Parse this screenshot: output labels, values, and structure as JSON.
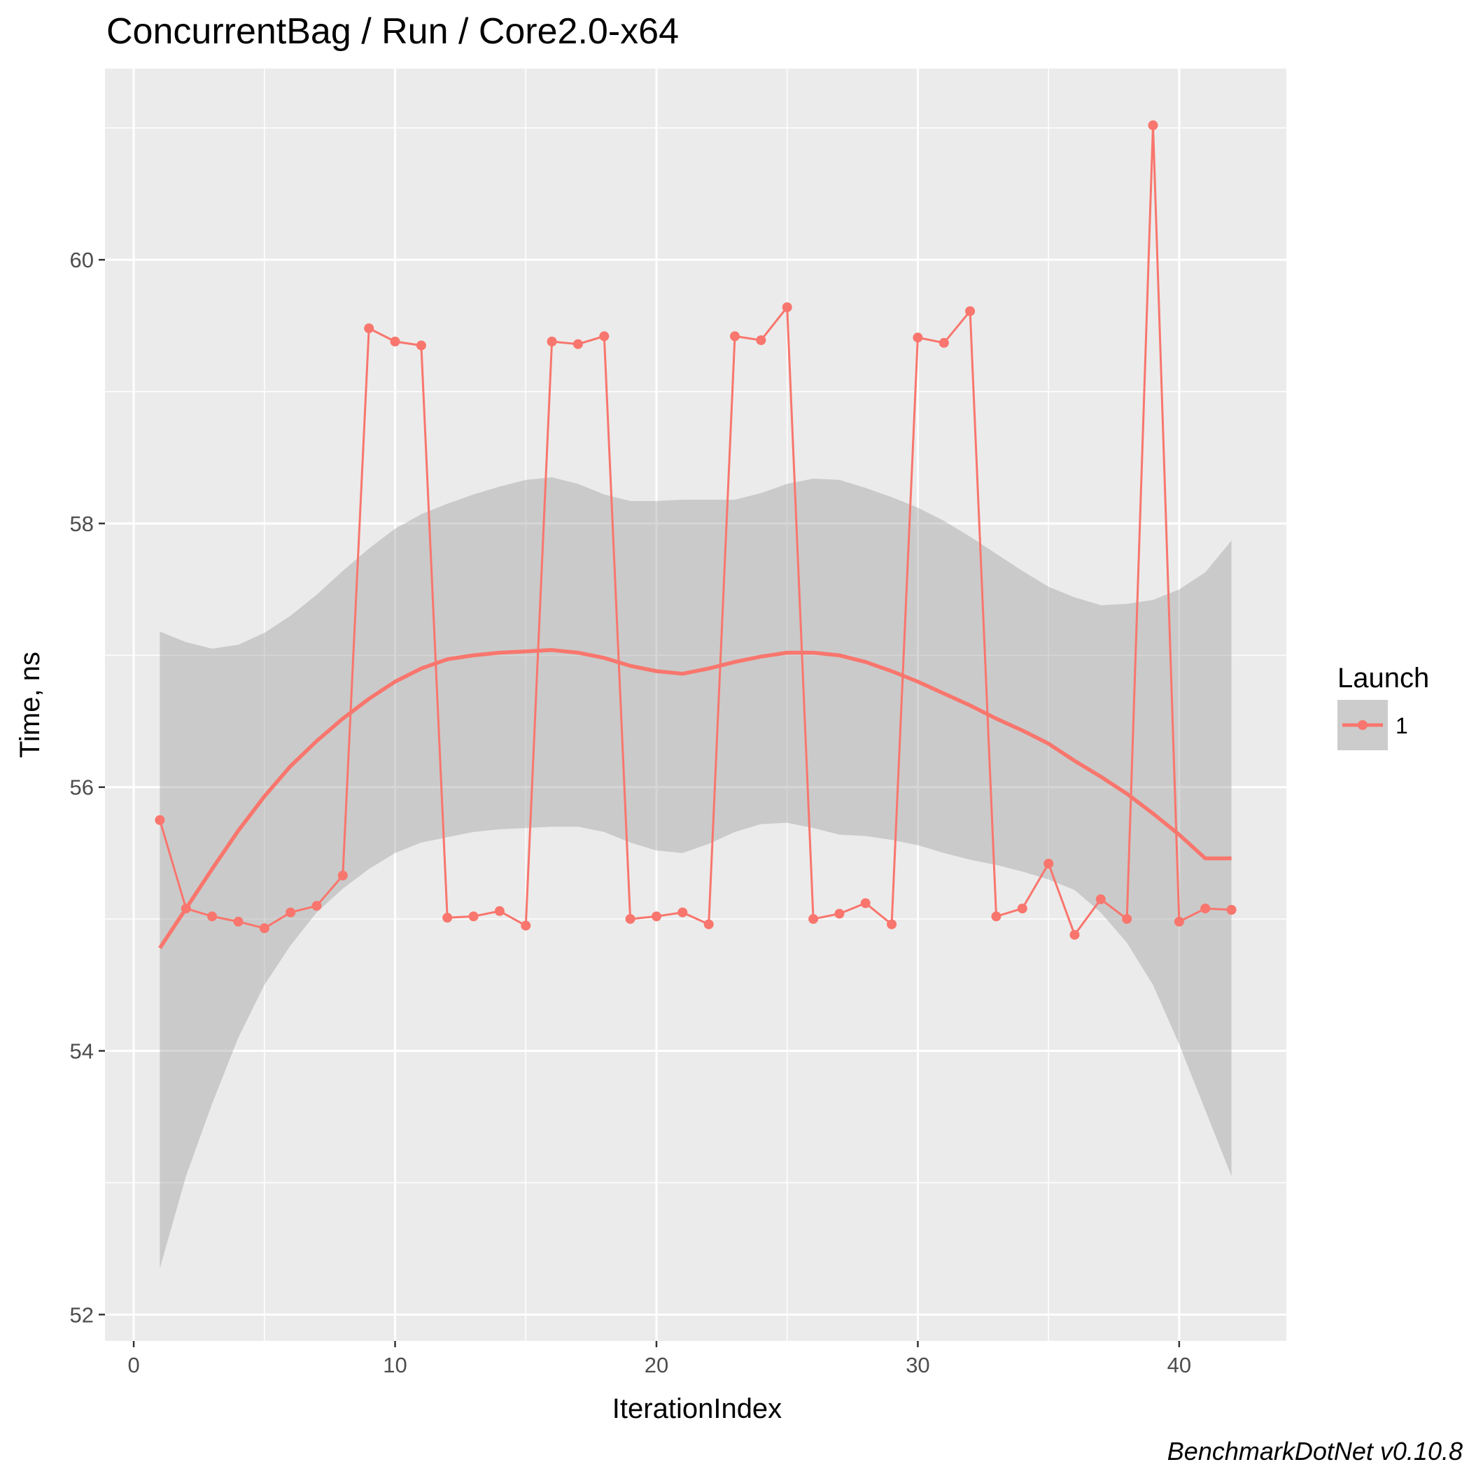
{
  "chart_data": {
    "type": "line",
    "title": "ConcurrentBag / Run / Core2.0-x64",
    "xlabel": "IterationIndex",
    "ylabel": "Time, ns",
    "caption": "BenchmarkDotNet v0.10.8",
    "xlim": [
      -1.1,
      44.1
    ],
    "ylim": [
      51.8,
      61.45
    ],
    "x_ticks": [
      0,
      10,
      20,
      30,
      40
    ],
    "x_tick_labels": [
      "0",
      "10",
      "20",
      "30",
      "40"
    ],
    "y_ticks": [
      52,
      54,
      56,
      58,
      60
    ],
    "y_tick_labels": [
      "52",
      "54",
      "56",
      "58",
      "60"
    ],
    "grid": true,
    "legend": {
      "title": "Launch",
      "position": "right",
      "entries": [
        "1"
      ]
    },
    "colors": {
      "series": "#f8766d",
      "band": "#cccccc",
      "panel": "#ebebeb",
      "grid": "#ffffff"
    },
    "series": [
      {
        "name": "1",
        "x": [
          1,
          2,
          3,
          4,
          5,
          6,
          7,
          8,
          9,
          10,
          11,
          12,
          13,
          14,
          15,
          16,
          17,
          18,
          19,
          20,
          21,
          22,
          23,
          24,
          25,
          26,
          27,
          28,
          29,
          30,
          31,
          32,
          33,
          34,
          35,
          36,
          37,
          38,
          39,
          40,
          41,
          42
        ],
        "values": [
          55.75,
          55.08,
          55.02,
          54.98,
          54.93,
          55.05,
          55.1,
          55.33,
          59.48,
          59.38,
          59.35,
          55.01,
          55.02,
          55.06,
          54.95,
          59.38,
          59.36,
          59.42,
          55.0,
          55.02,
          55.05,
          54.96,
          59.42,
          59.39,
          59.64,
          55.0,
          55.04,
          55.12,
          54.96,
          59.41,
          59.37,
          59.61,
          55.02,
          55.08,
          55.42,
          54.88,
          55.15,
          55.0,
          61.02,
          54.98,
          55.08,
          55.07
        ]
      }
    ],
    "smooth": {
      "x": [
        1,
        2,
        3,
        4,
        5,
        6,
        7,
        8,
        9,
        10,
        11,
        12,
        13,
        14,
        15,
        16,
        17,
        18,
        19,
        20,
        21,
        22,
        23,
        24,
        25,
        26,
        27,
        28,
        29,
        30,
        31,
        32,
        33,
        34,
        35,
        36,
        37,
        38,
        39,
        40,
        41,
        42
      ],
      "y": [
        54.78,
        55.08,
        55.38,
        55.67,
        55.93,
        56.16,
        56.35,
        56.52,
        56.67,
        56.8,
        56.9,
        56.97,
        57.0,
        57.02,
        57.03,
        57.04,
        57.02,
        56.98,
        56.92,
        56.88,
        56.86,
        56.9,
        56.95,
        56.99,
        57.02,
        57.02,
        57.0,
        56.95,
        56.88,
        56.8,
        56.71,
        56.62,
        56.52,
        56.43,
        56.33,
        56.2,
        56.08,
        55.95,
        55.8,
        55.64,
        55.46,
        55.46
      ],
      "lower": [
        52.35,
        53.05,
        53.6,
        54.1,
        54.5,
        54.8,
        55.05,
        55.23,
        55.38,
        55.5,
        55.58,
        55.62,
        55.66,
        55.68,
        55.69,
        55.7,
        55.7,
        55.66,
        55.58,
        55.52,
        55.5,
        55.57,
        55.66,
        55.72,
        55.73,
        55.69,
        55.64,
        55.63,
        55.6,
        55.56,
        55.5,
        55.45,
        55.41,
        55.36,
        55.3,
        55.22,
        55.05,
        54.82,
        54.5,
        54.05,
        53.55,
        53.05
      ],
      "upper": [
        57.18,
        57.1,
        57.05,
        57.08,
        57.17,
        57.3,
        57.46,
        57.64,
        57.81,
        57.96,
        58.07,
        58.15,
        58.22,
        58.28,
        58.33,
        58.35,
        58.3,
        58.22,
        58.17,
        58.17,
        58.18,
        58.18,
        58.18,
        58.23,
        58.3,
        58.34,
        58.33,
        58.27,
        58.2,
        58.12,
        58.02,
        57.9,
        57.77,
        57.64,
        57.52,
        57.44,
        57.38,
        57.39,
        57.42,
        57.5,
        57.63,
        57.87
      ]
    }
  }
}
